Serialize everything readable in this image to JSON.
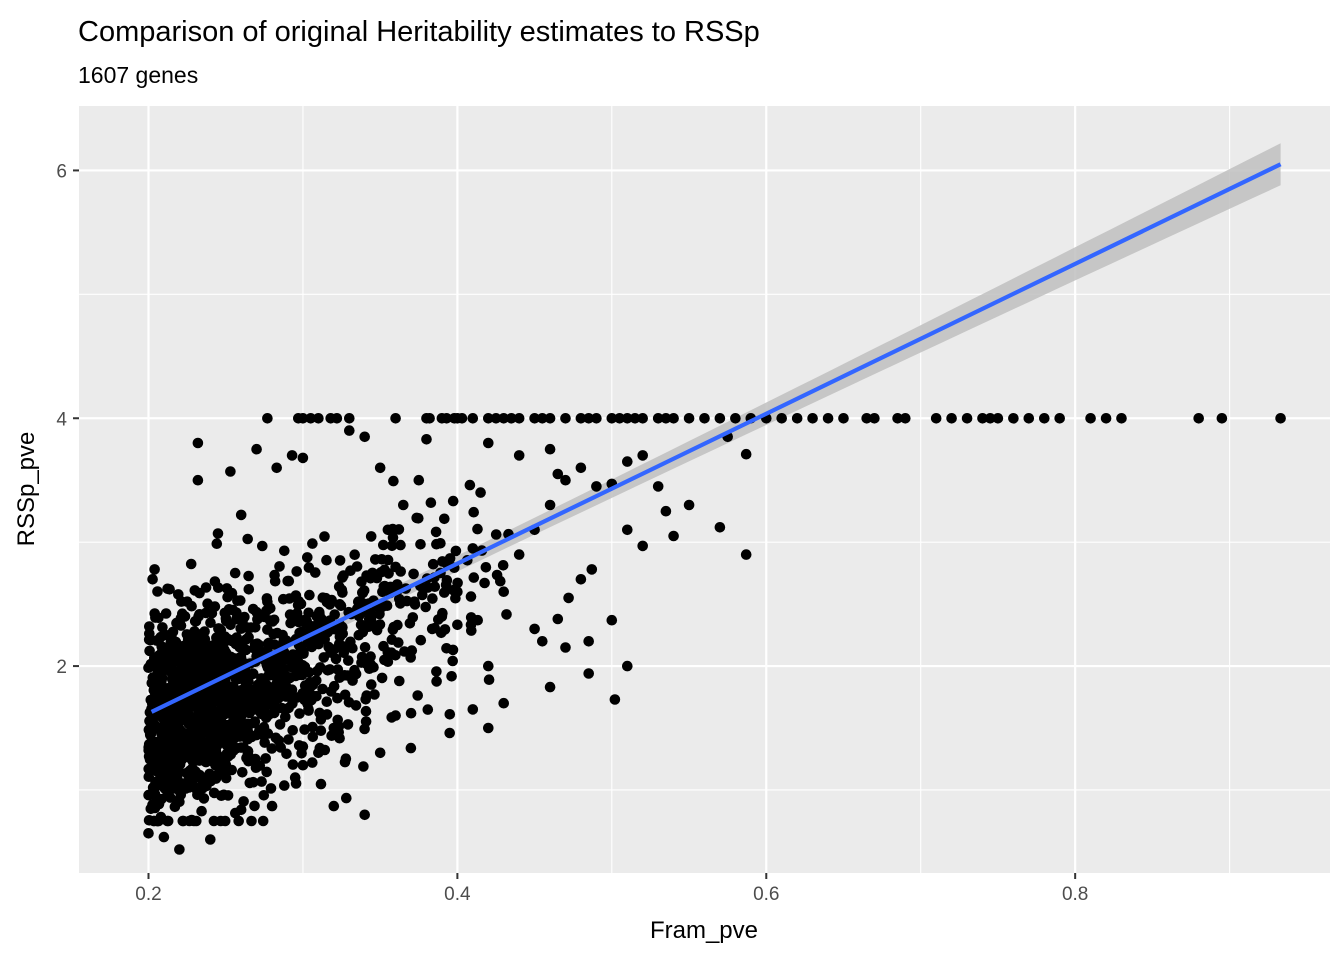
{
  "chart_data": {
    "type": "scatter",
    "title": "Comparison of original Heritability estimates to RSSp",
    "subtitle": "1607 genes",
    "xlabel": "Fram_pve",
    "ylabel": "RSSp_pve",
    "xlim": [
      0.155,
      0.965
    ],
    "ylim": [
      0.33,
      6.52
    ],
    "x_major_ticks": [
      0.2,
      0.4,
      0.6,
      0.8
    ],
    "x_minor_ticks": [
      0.3,
      0.5,
      0.7,
      0.9
    ],
    "y_major_ticks": [
      2,
      4,
      6
    ],
    "y_minor_ticks": [
      1,
      3,
      5
    ],
    "x_tick_labels": [
      "0.2",
      "0.4",
      "0.6",
      "0.8"
    ],
    "y_tick_labels": [
      "2",
      "4",
      "6"
    ],
    "grid": true,
    "point_color": "#000000",
    "fit": {
      "method": "linear",
      "x": [
        0.202,
        0.933
      ],
      "y": [
        1.63,
        6.05
      ],
      "color": "#3366FF",
      "ribbon_color": "#bfbfbf",
      "ribbon_halfwidth": [
        0.06,
        0.17
      ]
    },
    "points": {
      "capped_value": 4.0,
      "capped_x": [
        0.277,
        0.297,
        0.3,
        0.305,
        0.31,
        0.318,
        0.322,
        0.33,
        0.36,
        0.38,
        0.382,
        0.39,
        0.393,
        0.398,
        0.4,
        0.403,
        0.41,
        0.42,
        0.425,
        0.43,
        0.435,
        0.44,
        0.45,
        0.455,
        0.46,
        0.47,
        0.48,
        0.485,
        0.49,
        0.5,
        0.505,
        0.51,
        0.515,
        0.52,
        0.53,
        0.535,
        0.54,
        0.55,
        0.56,
        0.57,
        0.58,
        0.59,
        0.6,
        0.61,
        0.62,
        0.63,
        0.64,
        0.65,
        0.665,
        0.67,
        0.685,
        0.69,
        0.71,
        0.72,
        0.73,
        0.74,
        0.745,
        0.75,
        0.76,
        0.77,
        0.78,
        0.79,
        0.81,
        0.82,
        0.83,
        0.88,
        0.895,
        0.933
      ],
      "outliers": [
        [
          0.232,
          3.8
        ],
        [
          0.27,
          3.75
        ],
        [
          0.283,
          3.6
        ],
        [
          0.293,
          3.7
        ],
        [
          0.3,
          3.68
        ],
        [
          0.253,
          3.57
        ],
        [
          0.232,
          3.5
        ],
        [
          0.34,
          3.85
        ],
        [
          0.38,
          3.83
        ],
        [
          0.42,
          3.8
        ],
        [
          0.44,
          3.7
        ],
        [
          0.49,
          3.45
        ],
        [
          0.5,
          3.47
        ],
        [
          0.53,
          3.45
        ],
        [
          0.575,
          3.85
        ],
        [
          0.587,
          3.71
        ],
        [
          0.57,
          3.12
        ],
        [
          0.535,
          3.25
        ],
        [
          0.54,
          3.05
        ],
        [
          0.51,
          3.1
        ],
        [
          0.52,
          2.97
        ],
        [
          0.587,
          2.9
        ],
        [
          0.487,
          2.78
        ],
        [
          0.48,
          2.7
        ],
        [
          0.472,
          2.55
        ],
        [
          0.465,
          2.38
        ],
        [
          0.5,
          2.37
        ],
        [
          0.485,
          2.2
        ],
        [
          0.47,
          2.15
        ],
        [
          0.45,
          2.3
        ],
        [
          0.51,
          2.0
        ],
        [
          0.485,
          1.94
        ],
        [
          0.502,
          1.73
        ],
        [
          0.46,
          1.83
        ],
        [
          0.42,
          1.5
        ],
        [
          0.395,
          1.46
        ],
        [
          0.35,
          1.3
        ],
        [
          0.34,
          0.8
        ],
        [
          0.32,
          0.87
        ],
        [
          0.28,
          0.87
        ],
        [
          0.26,
          0.84
        ],
        [
          0.24,
          0.6
        ],
        [
          0.22,
          0.52
        ],
        [
          0.21,
          0.62
        ],
        [
          0.2,
          0.65
        ],
        [
          0.245,
          3.07
        ],
        [
          0.26,
          3.22
        ],
        [
          0.42,
          2.0
        ],
        [
          0.43,
          2.6
        ],
        [
          0.44,
          2.9
        ],
        [
          0.46,
          3.3
        ],
        [
          0.47,
          3.5
        ],
        [
          0.455,
          2.2
        ],
        [
          0.41,
          1.65
        ],
        [
          0.37,
          1.62
        ],
        [
          0.36,
          1.6
        ],
        [
          0.43,
          1.7
        ],
        [
          0.39,
          2.4
        ],
        [
          0.4,
          2.6
        ],
        [
          0.41,
          2.95
        ],
        [
          0.415,
          3.4
        ],
        [
          0.375,
          3.5
        ],
        [
          0.365,
          3.3
        ],
        [
          0.355,
          3.1
        ],
        [
          0.35,
          3.6
        ],
        [
          0.33,
          3.9
        ],
        [
          0.45,
          3.1
        ],
        [
          0.51,
          3.65
        ],
        [
          0.46,
          3.75
        ],
        [
          0.52,
          3.7
        ],
        [
          0.48,
          3.6
        ],
        [
          0.465,
          3.55
        ],
        [
          0.55,
          3.3
        ],
        [
          0.3,
          1.2
        ],
        [
          0.31,
          1.3
        ],
        [
          0.295,
          1.1
        ],
        [
          0.3,
          1.35
        ],
        [
          0.32,
          1.5
        ]
      ],
      "cloud_count": 1400,
      "cloud_model": {
        "intercept": -0.9,
        "slope": 11.0,
        "sd": 0.42,
        "x_min": 0.2
      }
    }
  }
}
